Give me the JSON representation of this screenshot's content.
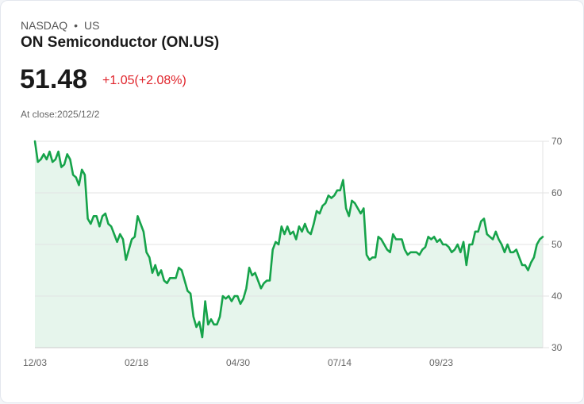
{
  "header": {
    "exchange": "NASDAQ",
    "separator": "•",
    "region": "US",
    "name": "ON Semiconductor (ON.US)",
    "price": "51.48",
    "change": "+1.05(+2.08%)",
    "close_label": "At close:2025/12/2"
  },
  "colors": {
    "line": "#16a34a",
    "fill": "#e6f5ec",
    "change": "#e0242b",
    "grid": "#e3e3e3"
  },
  "chart_data": {
    "type": "area",
    "title": "ON Semiconductor (ON.US)",
    "xlabel": "",
    "ylabel": "",
    "ylim": [
      30,
      70
    ],
    "yticks": [
      70,
      60,
      50,
      40,
      30
    ],
    "x_domain_days": [
      0,
      250
    ],
    "xticks": [
      {
        "label": "12/03",
        "day": 0
      },
      {
        "label": "02/18",
        "day": 50
      },
      {
        "label": "04/30",
        "day": 100
      },
      {
        "label": "07/14",
        "day": 150
      },
      {
        "label": "09/23",
        "day": 200
      }
    ],
    "grid": true,
    "values": [
      70,
      66,
      66.5,
      67.5,
      66.5,
      68,
      66,
      66.5,
      68,
      65,
      65.5,
      67.5,
      66.5,
      63.5,
      63,
      61.5,
      64.5,
      63.5,
      55,
      54,
      55.5,
      55.5,
      53.5,
      55.5,
      56,
      54,
      53.5,
      52,
      50.5,
      52,
      51,
      47,
      49,
      51,
      51.5,
      55.5,
      54,
      52.5,
      48.5,
      47.5,
      44.5,
      46,
      44,
      45,
      43,
      42.5,
      43.5,
      43.5,
      43.5,
      45.5,
      45,
      43,
      41,
      40.5,
      36,
      34,
      35,
      32,
      39,
      34.5,
      35.5,
      34.5,
      34.5,
      36,
      40,
      39.5,
      40,
      39,
      40,
      40,
      38.5,
      39.5,
      41.5,
      45.5,
      44,
      44.5,
      43,
      41.5,
      42.5,
      43,
      43,
      49,
      50.5,
      50,
      53.5,
      52,
      53.5,
      52,
      52.5,
      51,
      53.5,
      52.5,
      54,
      52.5,
      52,
      54,
      56.5,
      56,
      57.5,
      58,
      59.5,
      59,
      59.5,
      60.5,
      60.5,
      62.5,
      57,
      55.5,
      58.5,
      58,
      57,
      56,
      57,
      48,
      47,
      47.5,
      47.5,
      51.5,
      51,
      50,
      49,
      48.5,
      52,
      51,
      51,
      51,
      49,
      48,
      48.5,
      48.5,
      48.5,
      48,
      49,
      49.5,
      51.5,
      51,
      51.5,
      50.5,
      51,
      50,
      50,
      49.5,
      48.5,
      49,
      50,
      48.5,
      50.5,
      46,
      50,
      50,
      52.5,
      52.5,
      54.5,
      55,
      52,
      51.5,
      51,
      52.5,
      51,
      50,
      48.5,
      50,
      48.5,
      48.5,
      49,
      47.5,
      46,
      46,
      45,
      46.5,
      47.5,
      50,
      51,
      51.48
    ]
  }
}
